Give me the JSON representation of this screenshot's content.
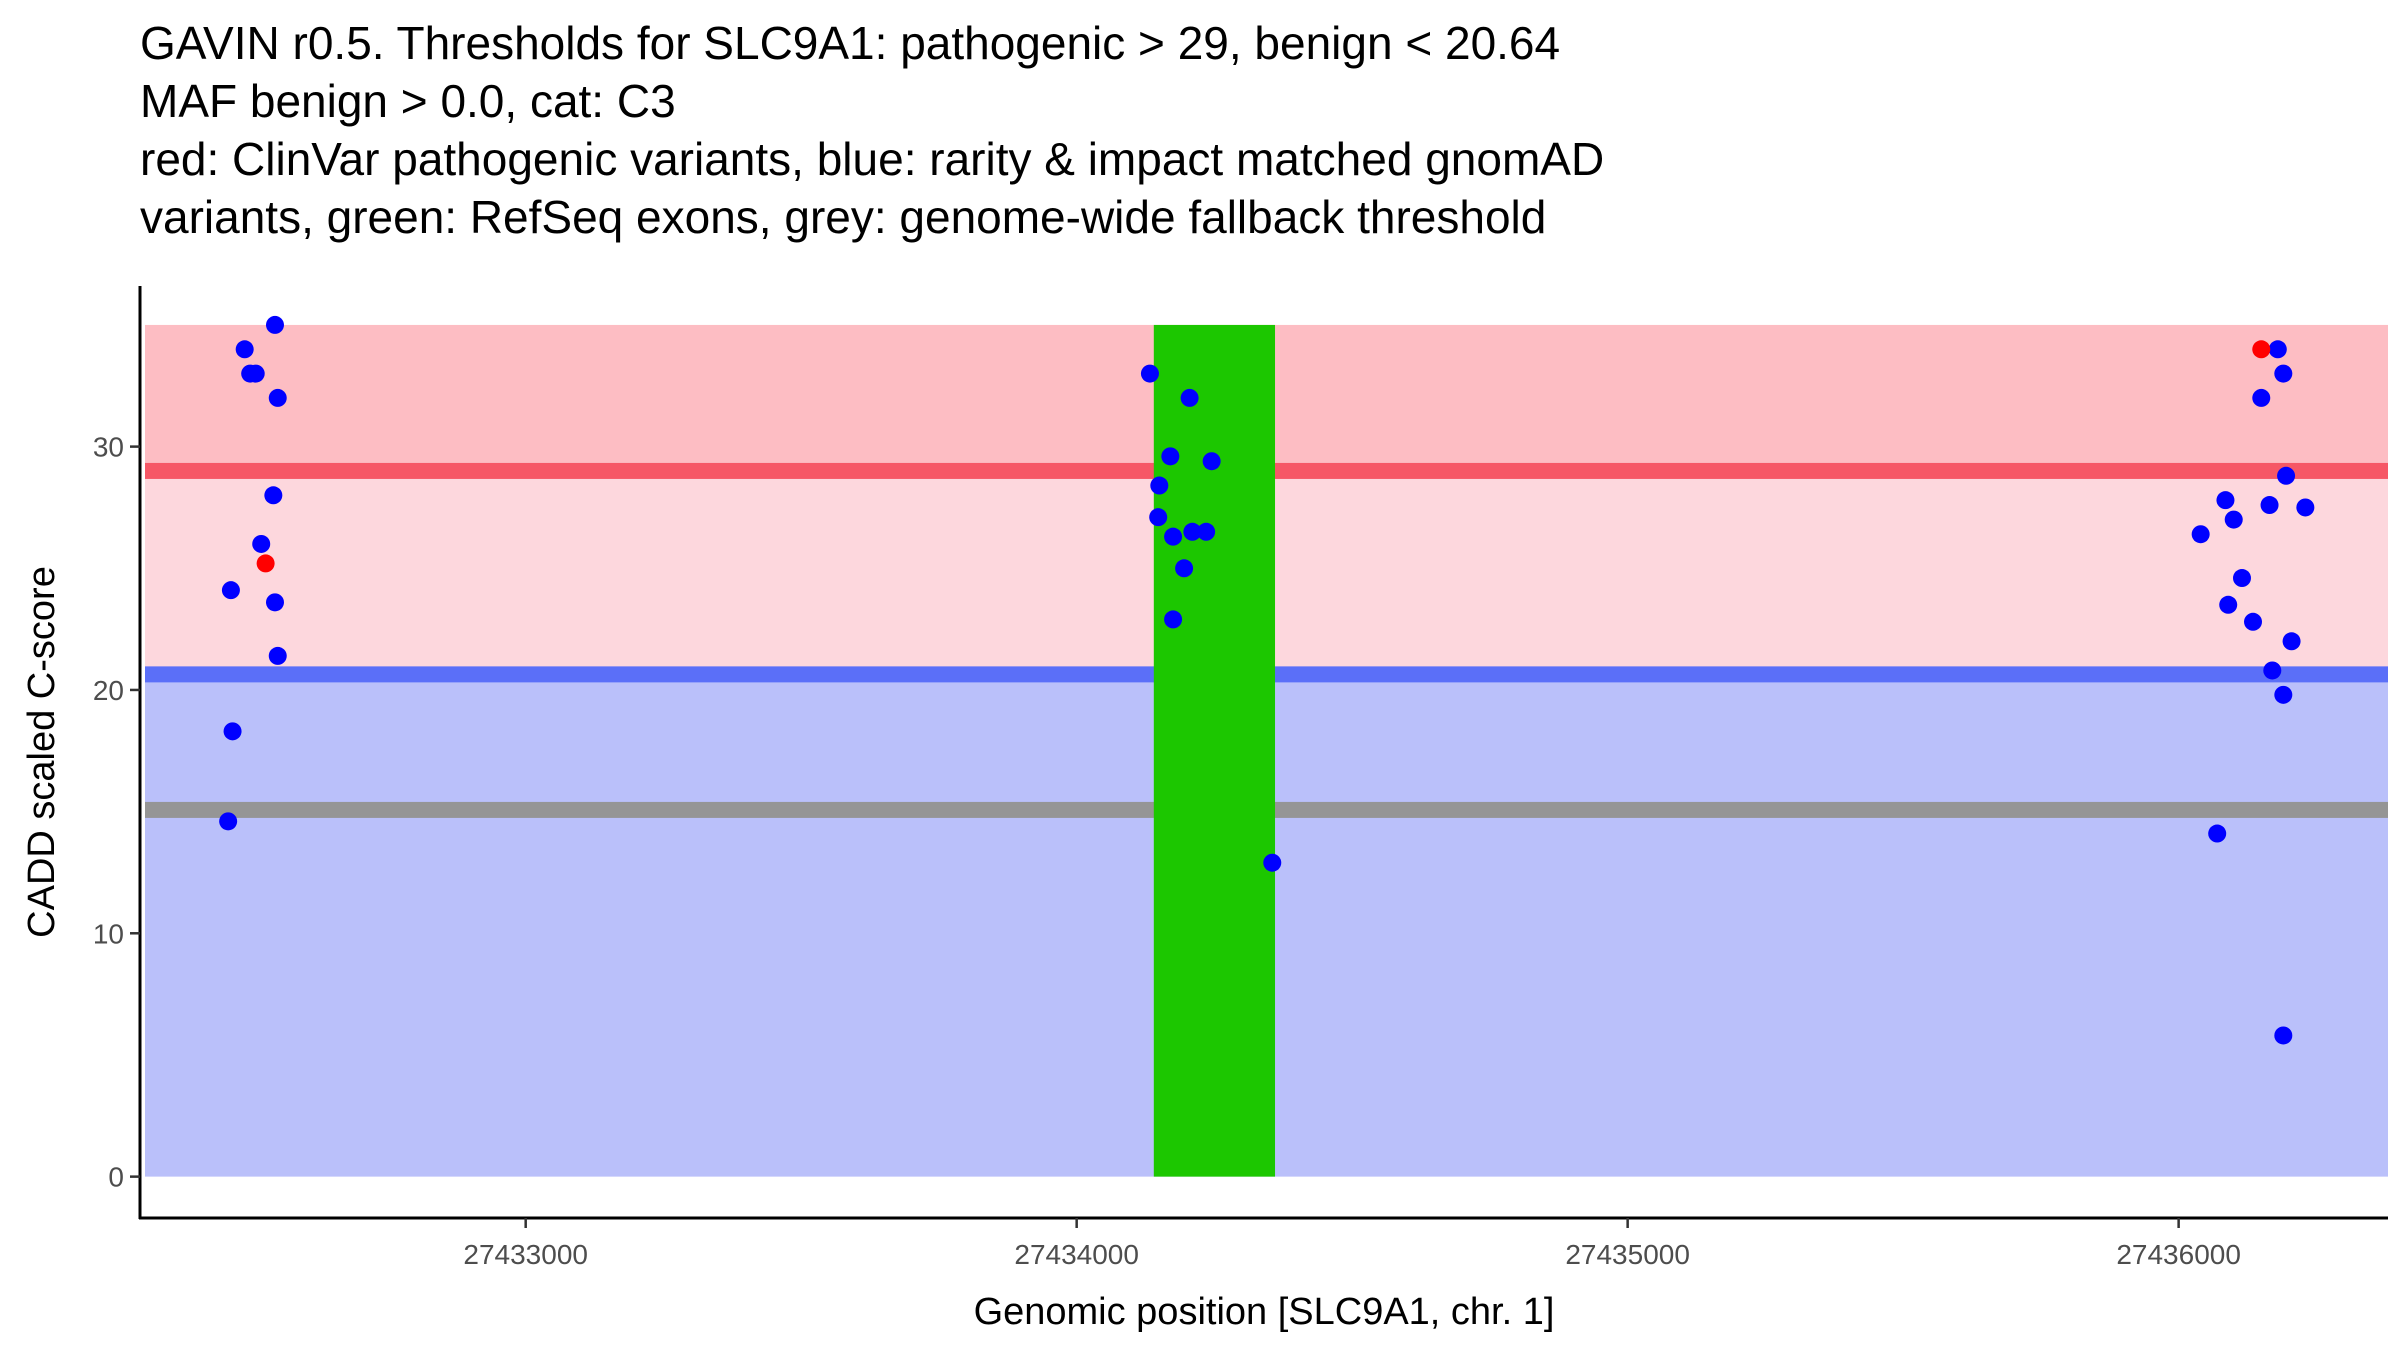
{
  "chart_data": {
    "type": "scatter",
    "title_lines": [
      "GAVIN r0.5. Thresholds for SLC9A1: pathogenic > 29, benign < 20.64",
      "MAF benign > 0.0, cat: C3",
      "red: ClinVar pathogenic variants, blue: rarity & impact matched gnomAD",
      "variants, green: RefSeq exons, grey: genome-wide fallback threshold"
    ],
    "xlabel": "Genomic position [SLC9A1, chr. 1]",
    "ylabel": "CADD scaled C-score",
    "xlim": [
      27432300,
      27436380
    ],
    "ylim": [
      -1.7,
      36.6
    ],
    "x_ticks": [
      27433000,
      27434000,
      27435000,
      27436000
    ],
    "x_tick_labels": [
      "27433000",
      "27434000",
      "27435000",
      "27436000"
    ],
    "y_ticks": [
      0,
      10,
      20,
      30
    ],
    "y_tick_labels": [
      "0",
      "10",
      "20",
      "30"
    ],
    "colors": {
      "pathogenic_band": "#fdbdc3",
      "pathogenic_zone": "#fdd7dd",
      "benign_zone": "#bac0fa",
      "pathogenic_line": "#f65766",
      "benign_line": "#5b6ff8",
      "fallback_line": "#959595",
      "exon": "#1cc700",
      "gnomad_point": "#0000ff",
      "clinvar_point": "#ff0000"
    },
    "regions": {
      "pathogenic_upper": [
        29,
        35
      ],
      "intermediate": [
        20.64,
        29
      ],
      "benign": [
        0,
        20.64
      ]
    },
    "thresholds": {
      "pathogenic": 29,
      "benign": 20.64,
      "fallback": 15.07
    },
    "exon": {
      "start": 27434140,
      "end": 27434360
    },
    "series": [
      {
        "name": "gnomAD matched variants",
        "color": "#0000ff",
        "points": [
          [
            27432490,
            34.0
          ],
          [
            27432500,
            33.0
          ],
          [
            27432510,
            33.0
          ],
          [
            27432545,
            35.0
          ],
          [
            27432550,
            32.0
          ],
          [
            27432542,
            28.0
          ],
          [
            27432520,
            26.0
          ],
          [
            27432545,
            23.6
          ],
          [
            27432550,
            21.4
          ],
          [
            27432465,
            24.1
          ],
          [
            27432468,
            18.3
          ],
          [
            27432460,
            14.6
          ],
          [
            27434133,
            33.0
          ],
          [
            27434205,
            32.0
          ],
          [
            27434150,
            28.4
          ],
          [
            27434170,
            29.6
          ],
          [
            27434245,
            29.4
          ],
          [
            27434148,
            27.1
          ],
          [
            27434175,
            26.3
          ],
          [
            27434210,
            26.5
          ],
          [
            27434235,
            26.5
          ],
          [
            27434195,
            25.0
          ],
          [
            27434175,
            22.9
          ],
          [
            27434355,
            12.9
          ],
          [
            27436180,
            34.0
          ],
          [
            27436190,
            33.0
          ],
          [
            27436150,
            32.0
          ],
          [
            27436195,
            28.8
          ],
          [
            27436085,
            27.8
          ],
          [
            27436165,
            27.6
          ],
          [
            27436230,
            27.5
          ],
          [
            27436100,
            27.0
          ],
          [
            27436040,
            26.4
          ],
          [
            27436115,
            24.6
          ],
          [
            27436090,
            23.5
          ],
          [
            27436135,
            22.8
          ],
          [
            27436205,
            22.0
          ],
          [
            27436170,
            20.8
          ],
          [
            27436190,
            19.8
          ],
          [
            27436070,
            14.1
          ],
          [
            27436190,
            5.8
          ]
        ]
      },
      {
        "name": "ClinVar pathogenic variants",
        "color": "#ff0000",
        "points": [
          [
            27432528,
            25.2
          ],
          [
            27436150,
            34.0
          ]
        ]
      }
    ]
  }
}
